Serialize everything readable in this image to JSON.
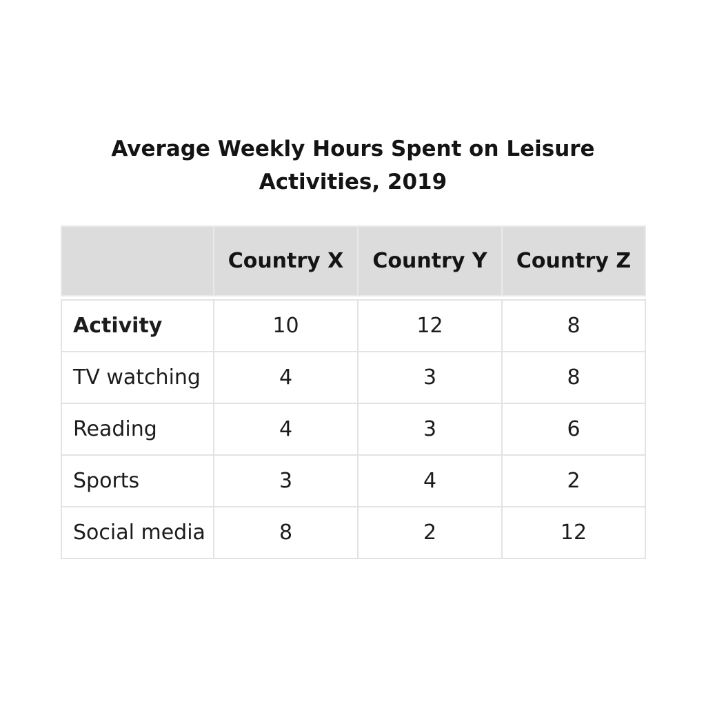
{
  "chart_data": {
    "type": "table",
    "title_lines": [
      "Average Weekly Hours Spent on Leisure",
      "Activities, 2019"
    ],
    "columns": [
      "",
      "Country X",
      "Country Y",
      "Country Z"
    ],
    "rows": [
      {
        "label": "Activity",
        "values": [
          "10",
          "12",
          "8"
        ]
      },
      {
        "label": "TV watching",
        "values": [
          "4",
          "3",
          "8"
        ]
      },
      {
        "label": "Reading",
        "values": [
          "4",
          "3",
          "6"
        ]
      },
      {
        "label": "Sports",
        "values": [
          "3",
          "4",
          "2"
        ]
      },
      {
        "label": "Social media",
        "values": [
          "8",
          "2",
          "12"
        ]
      }
    ]
  },
  "colors": {
    "header_background": "#dcdcdc",
    "border": "#e3e3e3",
    "text": "#1c1c1c"
  }
}
